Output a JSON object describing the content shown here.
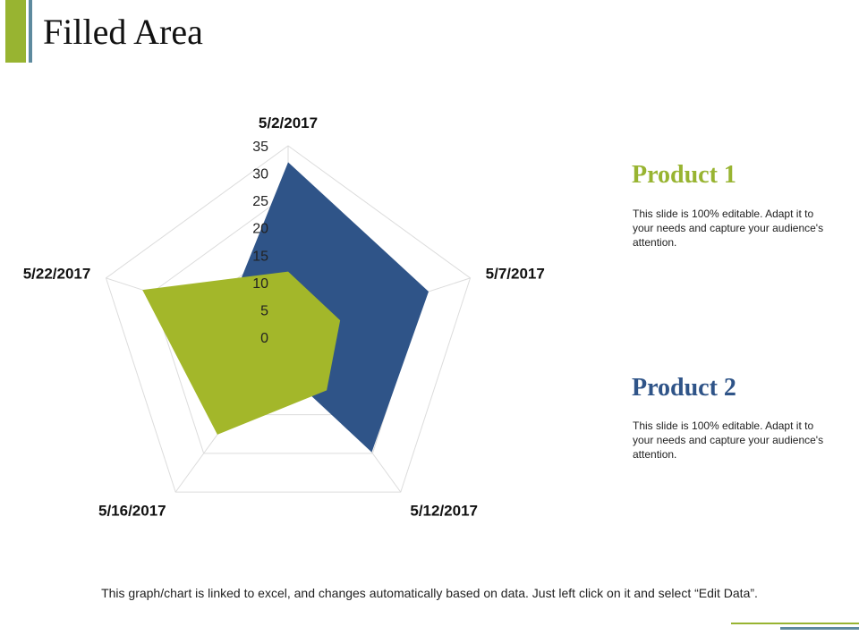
{
  "slide": {
    "title": "Filled Area",
    "footnote": "This graph/chart is linked to excel, and changes automatically  based on data. Just left click on it and select “Edit Data”."
  },
  "legend": [
    {
      "title": "Product 1",
      "description": "This slide is 100% editable. Adapt it to your needs and capture your audience's attention.",
      "color": "#98b431"
    },
    {
      "title": "Product 2",
      "description": "This slide is 100% editable. Adapt it to your needs and capture your audience's attention.",
      "color": "#2f5488"
    }
  ],
  "chart_data": {
    "type": "radar",
    "categories": [
      "5/2/2017",
      "5/7/2017",
      "5/12/2017",
      "5/16/2017",
      "5/22/2017"
    ],
    "radial_ticks": [
      "0",
      "5",
      "10",
      "15",
      "20",
      "25",
      "30",
      "35"
    ],
    "rmax": 35,
    "series": [
      {
        "name": "Product 2",
        "values": [
          32,
          27,
          26,
          5,
          12
        ],
        "color": "#2f5488"
      },
      {
        "name": "Product 1",
        "values": [
          12,
          10,
          12,
          22,
          28
        ],
        "color": "#a3b72a"
      }
    ],
    "grid": true
  }
}
